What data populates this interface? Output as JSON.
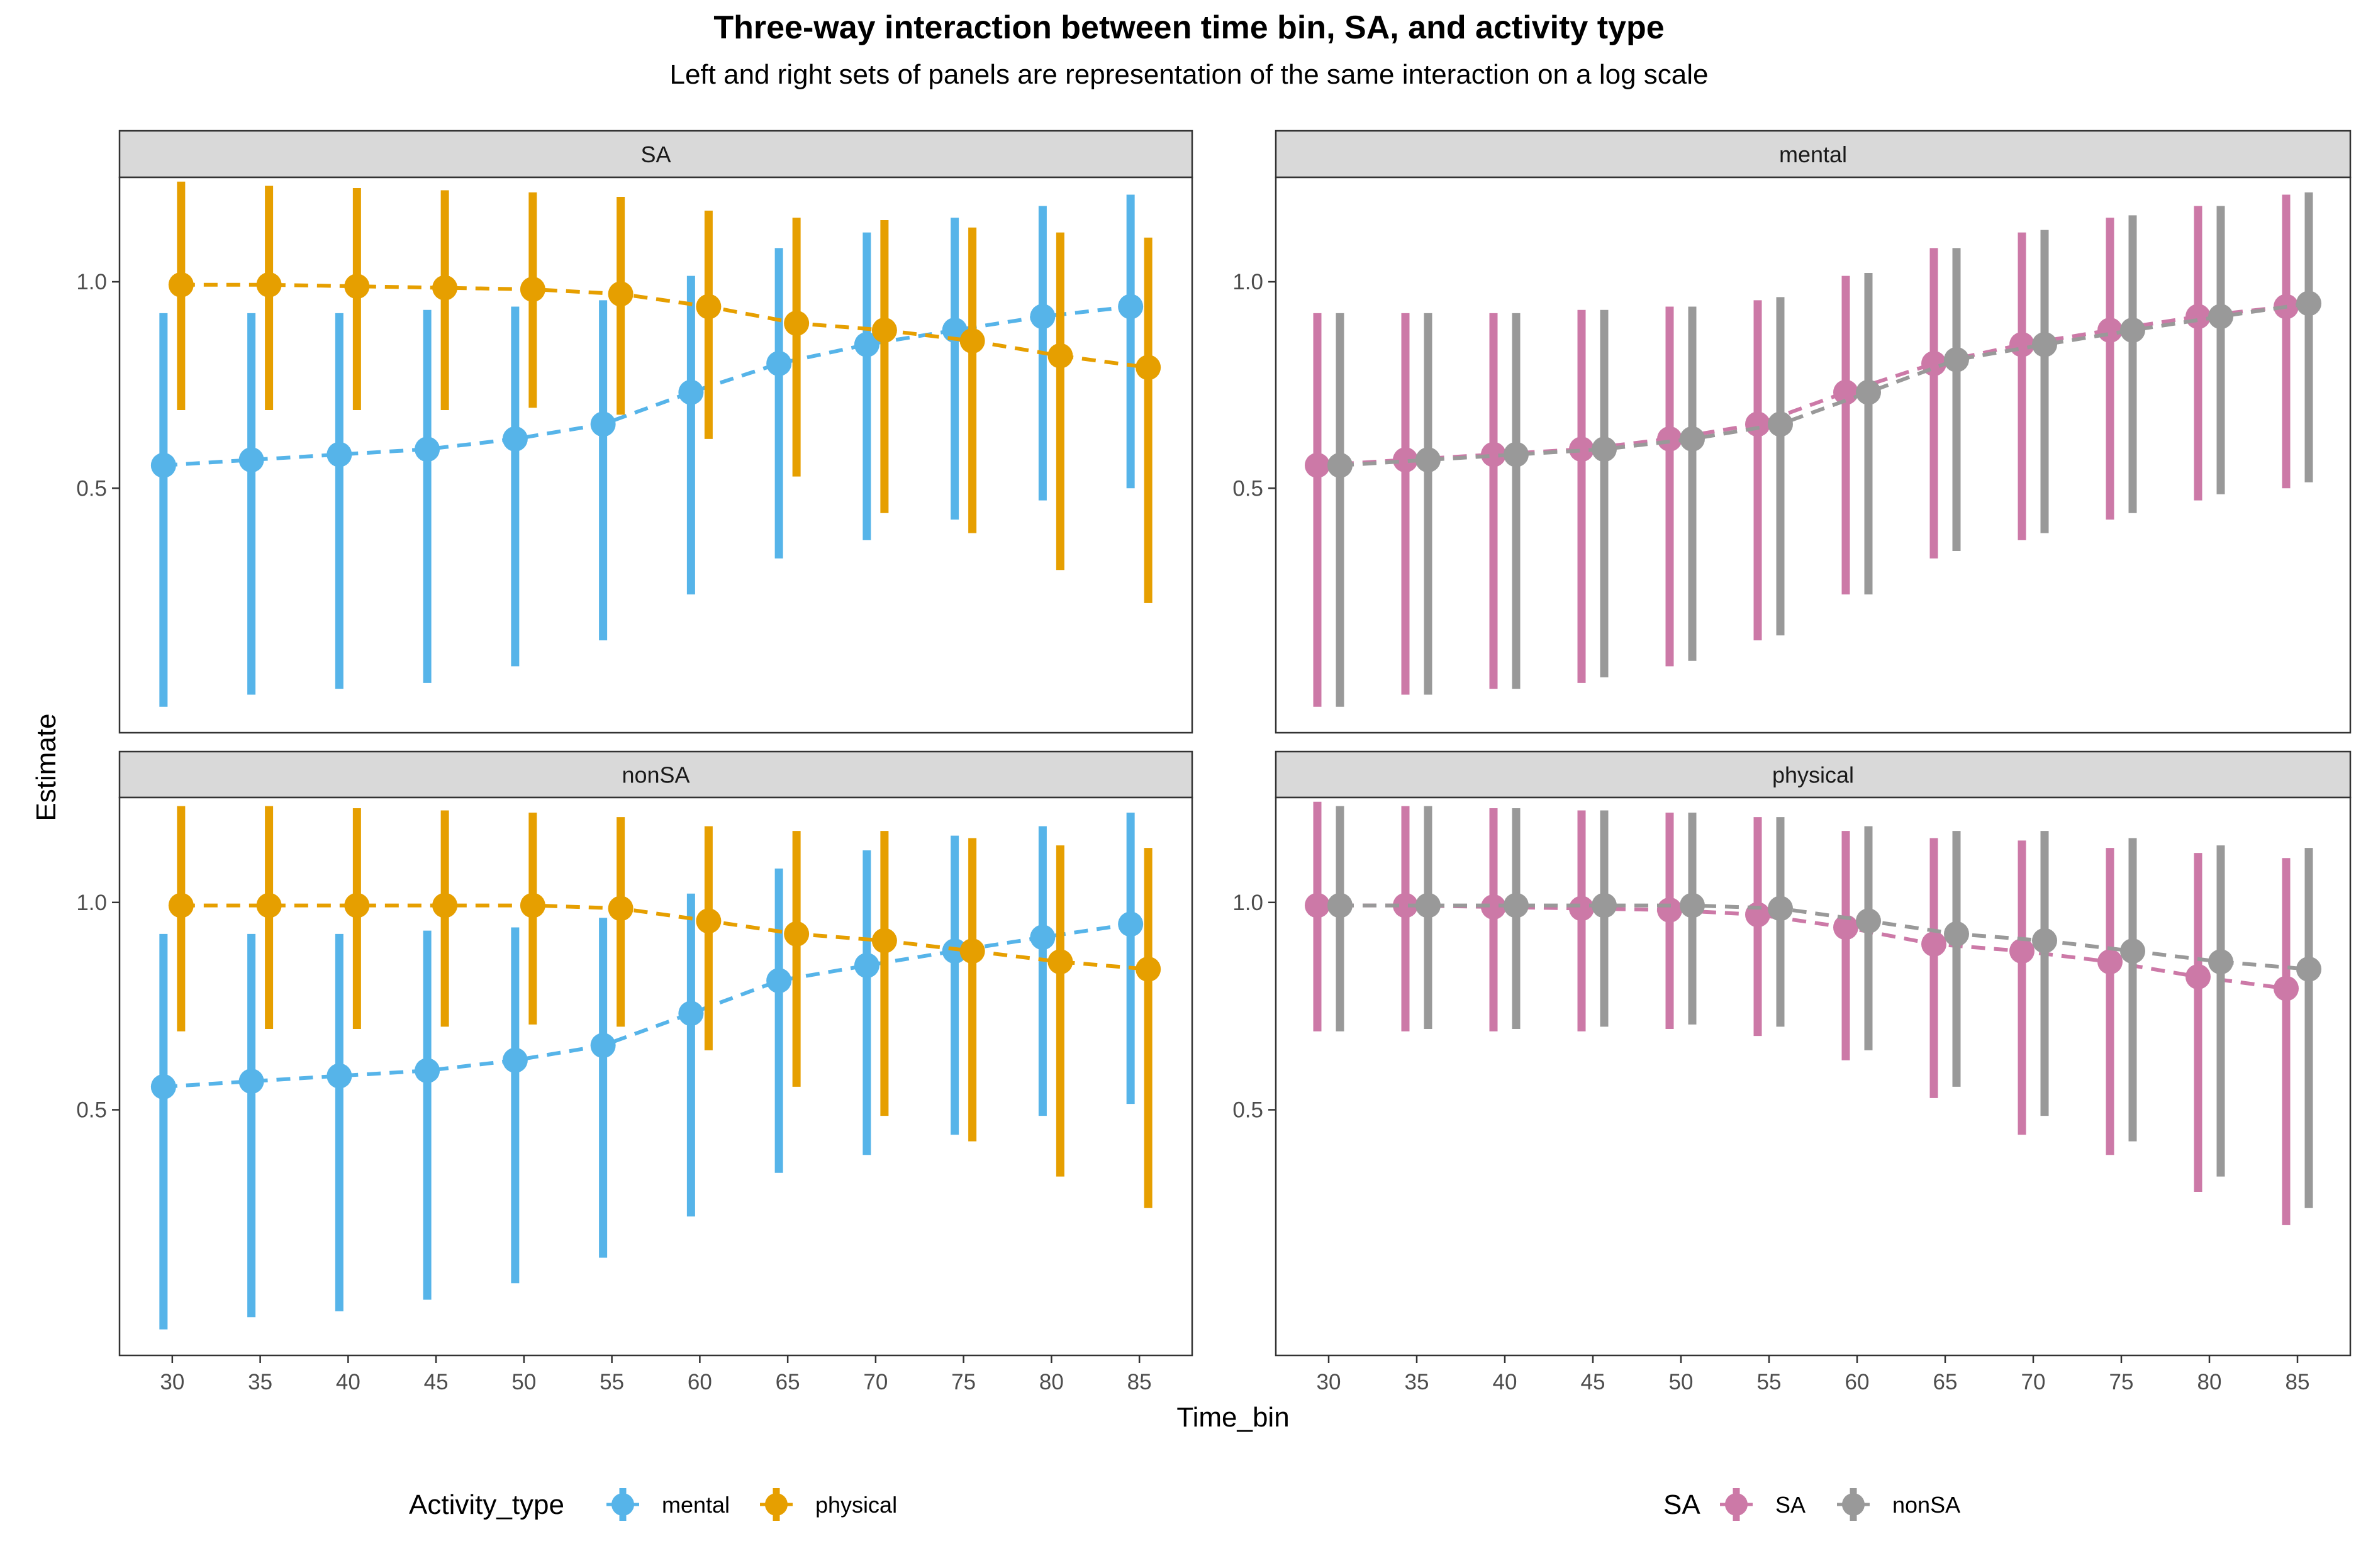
{
  "title": "Three-way interaction between time bin, SA, and activity type",
  "subtitle": "Left and right sets of panels are representation of the same interaction on a log scale",
  "colors": {
    "mental": "#56B4E9",
    "physical": "#E69F00",
    "SA": "#CC79A7",
    "nonSA": "#999999",
    "strip_bg": "#d9d9d9"
  },
  "chart_data": {
    "type": "scatter",
    "x_label": "Time_bin",
    "y_label": "Estimate",
    "x": [
      30,
      35,
      40,
      45,
      50,
      55,
      60,
      65,
      70,
      75,
      80,
      85
    ],
    "y_ticks": [
      0.5,
      1.0
    ],
    "y_scale": "log",
    "y_range": [
      0.22,
      1.42
    ],
    "legends": [
      {
        "title": "Activity_type",
        "entries": [
          "mental",
          "physical"
        ],
        "position": "bottom-left"
      },
      {
        "title": "SA",
        "entries": [
          "SA",
          "nonSA"
        ],
        "position": "bottom-right"
      }
    ],
    "panels": [
      {
        "strip": "SA",
        "series": [
          {
            "name": "mental",
            "color_key": "mental",
            "values": [
              0.54,
              0.55,
              0.56,
              0.57,
              0.59,
              0.62,
              0.69,
              0.76,
              0.81,
              0.85,
              0.89,
              0.92
            ],
            "lower": [
              0.24,
              0.25,
              0.255,
              0.26,
              0.275,
              0.3,
              0.35,
              0.395,
              0.42,
              0.45,
              0.48,
              0.5
            ],
            "upper": [
              0.9,
              0.9,
              0.9,
              0.91,
              0.92,
              0.94,
              1.02,
              1.12,
              1.18,
              1.24,
              1.29,
              1.34
            ]
          },
          {
            "name": "physical",
            "color_key": "physical",
            "values": [
              0.99,
              0.99,
              0.985,
              0.98,
              0.975,
              0.96,
              0.92,
              0.87,
              0.85,
              0.82,
              0.78,
              0.75
            ],
            "lower": [
              0.65,
              0.65,
              0.65,
              0.65,
              0.655,
              0.64,
              0.59,
              0.52,
              0.46,
              0.43,
              0.38,
              0.34
            ],
            "upper": [
              1.4,
              1.38,
              1.37,
              1.36,
              1.35,
              1.33,
              1.27,
              1.24,
              1.23,
              1.2,
              1.18,
              1.16
            ]
          }
        ]
      },
      {
        "strip": "nonSA",
        "series": [
          {
            "name": "mental",
            "color_key": "mental",
            "values": [
              0.54,
              0.55,
              0.56,
              0.57,
              0.59,
              0.62,
              0.69,
              0.77,
              0.81,
              0.85,
              0.89,
              0.93
            ],
            "lower": [
              0.24,
              0.25,
              0.255,
              0.265,
              0.28,
              0.305,
              0.35,
              0.405,
              0.43,
              0.46,
              0.49,
              0.51
            ],
            "upper": [
              0.9,
              0.9,
              0.9,
              0.91,
              0.92,
              0.95,
              1.03,
              1.12,
              1.19,
              1.25,
              1.29,
              1.35
            ]
          },
          {
            "name": "physical",
            "color_key": "physical",
            "values": [
              0.99,
              0.99,
              0.99,
              0.99,
              0.99,
              0.98,
              0.94,
              0.9,
              0.88,
              0.85,
              0.82,
              0.8
            ],
            "lower": [
              0.65,
              0.655,
              0.655,
              0.66,
              0.665,
              0.66,
              0.61,
              0.54,
              0.49,
              0.45,
              0.4,
              0.36
            ],
            "upper": [
              1.38,
              1.38,
              1.37,
              1.36,
              1.35,
              1.33,
              1.29,
              1.27,
              1.27,
              1.24,
              1.21,
              1.2
            ]
          }
        ]
      },
      {
        "strip": "mental",
        "series": [
          {
            "name": "SA",
            "color_key": "SA",
            "values": [
              0.54,
              0.55,
              0.56,
              0.57,
              0.59,
              0.62,
              0.69,
              0.76,
              0.81,
              0.85,
              0.89,
              0.92
            ],
            "lower": [
              0.24,
              0.25,
              0.255,
              0.26,
              0.275,
              0.3,
              0.35,
              0.395,
              0.42,
              0.45,
              0.48,
              0.5
            ],
            "upper": [
              0.9,
              0.9,
              0.9,
              0.91,
              0.92,
              0.94,
              1.02,
              1.12,
              1.18,
              1.24,
              1.29,
              1.34
            ]
          },
          {
            "name": "nonSA",
            "color_key": "nonSA",
            "values": [
              0.54,
              0.55,
              0.56,
              0.57,
              0.59,
              0.62,
              0.69,
              0.77,
              0.81,
              0.85,
              0.89,
              0.93
            ],
            "lower": [
              0.24,
              0.25,
              0.255,
              0.265,
              0.28,
              0.305,
              0.35,
              0.405,
              0.43,
              0.46,
              0.49,
              0.51
            ],
            "upper": [
              0.9,
              0.9,
              0.9,
              0.91,
              0.92,
              0.95,
              1.03,
              1.12,
              1.19,
              1.25,
              1.29,
              1.35
            ]
          }
        ]
      },
      {
        "strip": "physical",
        "series": [
          {
            "name": "SA",
            "color_key": "SA",
            "values": [
              0.99,
              0.99,
              0.985,
              0.98,
              0.975,
              0.96,
              0.92,
              0.87,
              0.85,
              0.82,
              0.78,
              0.75
            ],
            "lower": [
              0.65,
              0.65,
              0.65,
              0.65,
              0.655,
              0.64,
              0.59,
              0.52,
              0.46,
              0.43,
              0.38,
              0.34
            ],
            "upper": [
              1.4,
              1.38,
              1.37,
              1.36,
              1.35,
              1.33,
              1.27,
              1.24,
              1.23,
              1.2,
              1.18,
              1.16
            ]
          },
          {
            "name": "nonSA",
            "color_key": "nonSA",
            "values": [
              0.99,
              0.99,
              0.99,
              0.99,
              0.99,
              0.98,
              0.94,
              0.9,
              0.88,
              0.85,
              0.82,
              0.8
            ],
            "lower": [
              0.65,
              0.655,
              0.655,
              0.66,
              0.665,
              0.66,
              0.61,
              0.54,
              0.49,
              0.45,
              0.4,
              0.36
            ],
            "upper": [
              1.38,
              1.38,
              1.37,
              1.36,
              1.35,
              1.33,
              1.29,
              1.27,
              1.27,
              1.24,
              1.21,
              1.2
            ]
          }
        ]
      }
    ]
  }
}
